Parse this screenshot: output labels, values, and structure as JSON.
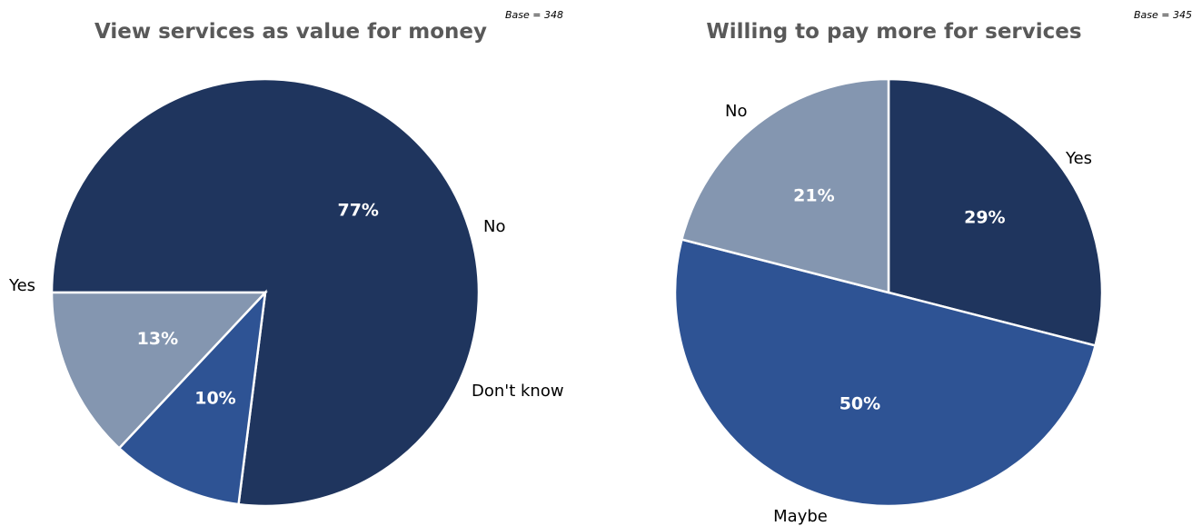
{
  "colors": {
    "dark": "#1f355e",
    "mid": "#2e5394",
    "light": "#8496b0"
  },
  "chart_data": [
    {
      "type": "pie",
      "title": "View services as value for money",
      "base_label": "Base = 348",
      "slices": [
        {
          "label": "Yes",
          "value": 77,
          "value_label": "77%",
          "color": "#1f355e"
        },
        {
          "label": "No",
          "value": 10,
          "value_label": "10%",
          "color": "#2e5394"
        },
        {
          "label": "Don't know",
          "value": 13,
          "value_label": "13%",
          "color": "#8496b0"
        }
      ]
    },
    {
      "type": "pie",
      "title": "Willing to pay more for services",
      "base_label": "Base = 345",
      "slices": [
        {
          "label": "Yes",
          "value": 29,
          "value_label": "29%",
          "color": "#1f355e"
        },
        {
          "label": "Maybe",
          "value": 50,
          "value_label": "50%",
          "color": "#2e5394"
        },
        {
          "label": "No",
          "value": 21,
          "value_label": "21%",
          "color": "#8496b0"
        }
      ]
    }
  ]
}
